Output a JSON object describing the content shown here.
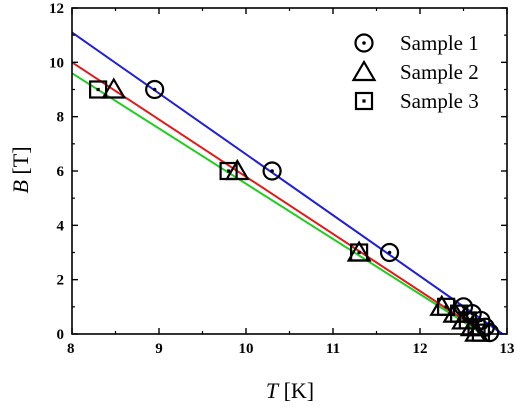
{
  "chart_data": {
    "type": "scatter",
    "title": "",
    "xlabel": {
      "symbol": "T",
      "unit": " [K]"
    },
    "ylabel": {
      "symbol": "B",
      "unit": " [T]"
    },
    "xlim": [
      8,
      13
    ],
    "ylim": [
      0,
      12
    ],
    "xticks": [
      8,
      9,
      10,
      11,
      12,
      13
    ],
    "yticks": [
      0,
      2,
      4,
      6,
      8,
      10,
      12
    ],
    "grid": false,
    "legend_position": "top-right",
    "series": [
      {
        "name": "Sample 1",
        "marker": "circle-dot",
        "points": [
          [
            8.95,
            9.0
          ],
          [
            10.3,
            6.0
          ],
          [
            11.65,
            3.0
          ],
          [
            12.5,
            1.0
          ],
          [
            12.6,
            0.75
          ],
          [
            12.7,
            0.5
          ],
          [
            12.75,
            0.25
          ],
          [
            12.8,
            0.05
          ]
        ],
        "fit": {
          "color": "#1f1fd6",
          "x": [
            8.0,
            12.95
          ],
          "y": [
            11.1,
            0.0
          ]
        }
      },
      {
        "name": "Sample 2",
        "marker": "triangle",
        "points": [
          [
            8.48,
            9.0
          ],
          [
            9.9,
            6.0
          ],
          [
            11.3,
            3.0
          ],
          [
            12.25,
            1.0
          ],
          [
            12.4,
            0.75
          ],
          [
            12.5,
            0.5
          ],
          [
            12.6,
            0.25
          ],
          [
            12.65,
            0.05
          ]
        ],
        "fit": {
          "color": "#e01b1b",
          "x": [
            8.0,
            12.75
          ],
          "y": [
            10.0,
            0.0
          ]
        }
      },
      {
        "name": "Sample 3",
        "marker": "square-dot",
        "points": [
          [
            8.3,
            9.0
          ],
          [
            9.8,
            6.0
          ],
          [
            11.3,
            3.0
          ],
          [
            12.3,
            1.0
          ],
          [
            12.45,
            0.75
          ],
          [
            12.55,
            0.5
          ],
          [
            12.65,
            0.25
          ],
          [
            12.7,
            0.05
          ]
        ],
        "fit": {
          "color": "#22cc22",
          "x": [
            8.0,
            12.72
          ],
          "y": [
            9.6,
            0.0
          ]
        }
      }
    ]
  }
}
